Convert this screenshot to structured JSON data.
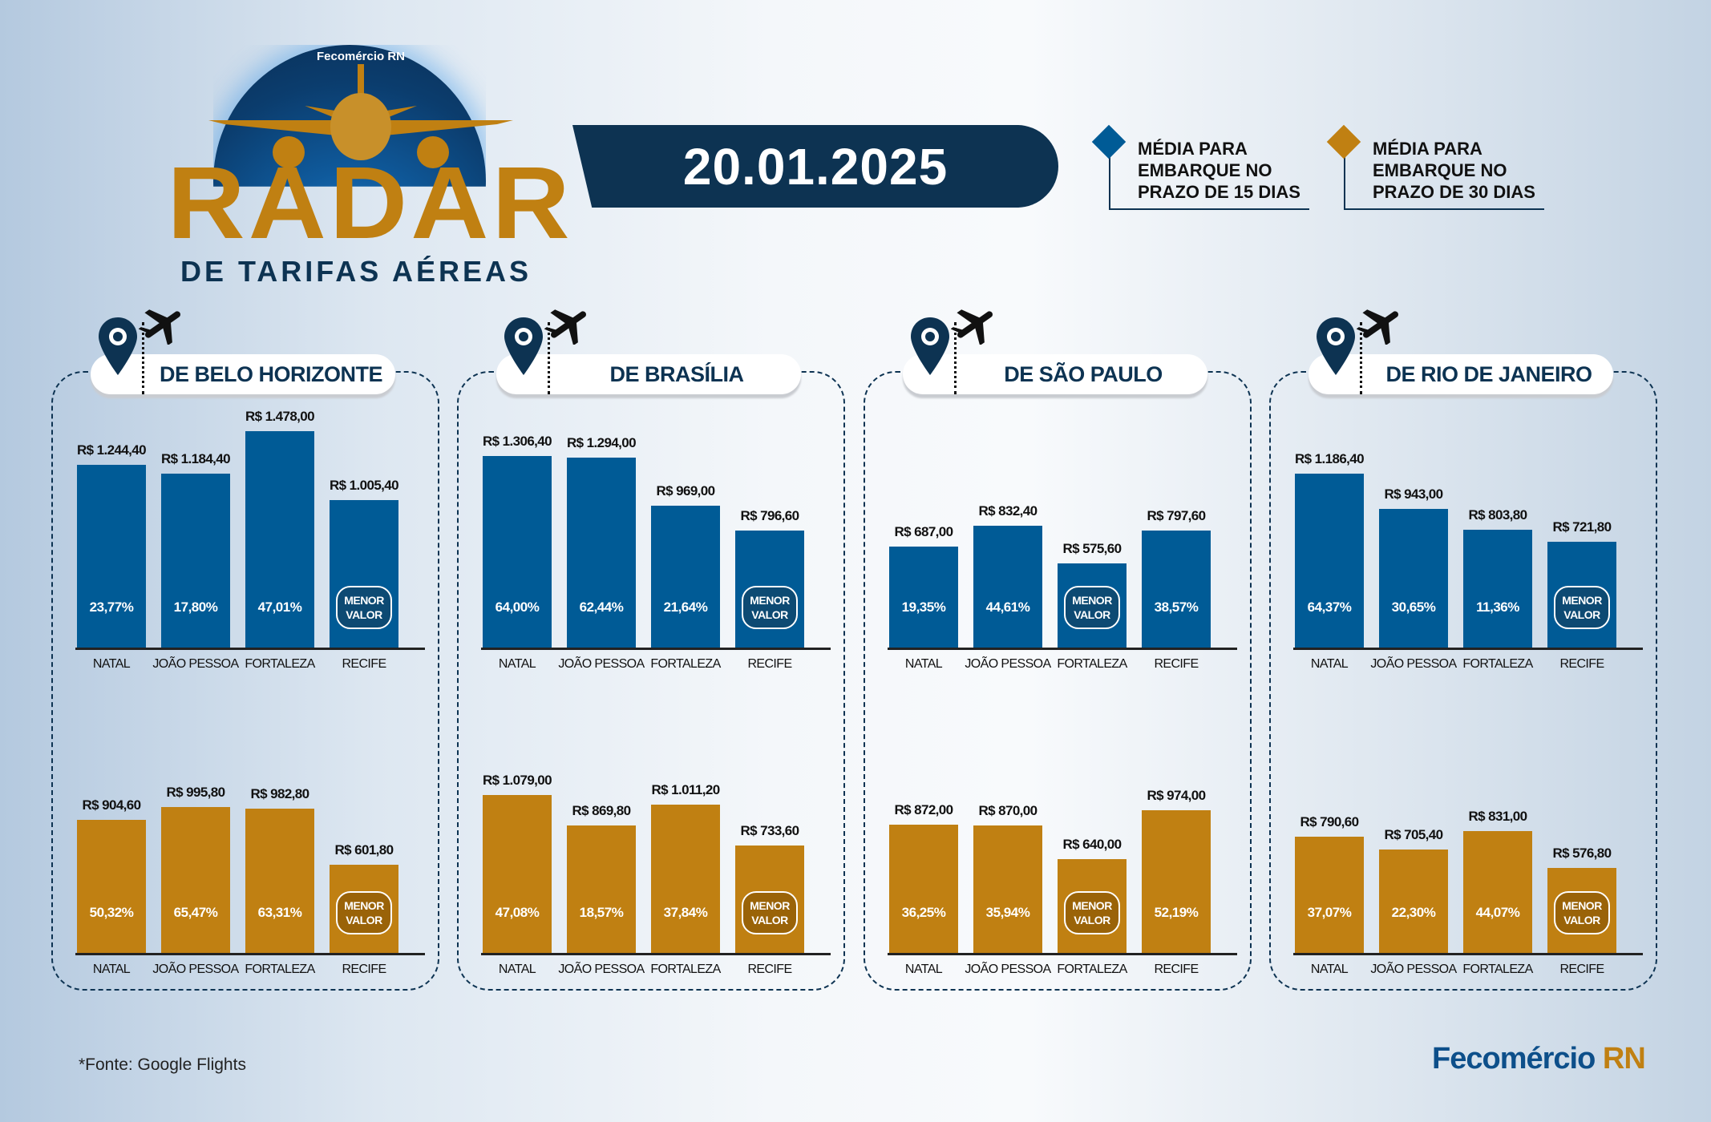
{
  "header": {
    "logo_brand": "Fecomércio RN",
    "logo_title": "RADAR",
    "logo_subtitle": "DE TARIFAS AÉREAS",
    "date": "20.01.2025"
  },
  "legend": [
    {
      "text": "MÉDIA PARA EMBARQUE NO PRAZO DE 15 DIAS",
      "color": "#005b96"
    },
    {
      "text": "MÉDIA PARA EMBARQUE NO PRAZO DE 30 DIAS",
      "color": "#c08012"
    }
  ],
  "badge_text": "MENOR VALOR",
  "colors": {
    "blue": "#005b96",
    "gold": "#c08012",
    "navy": "#0d3352",
    "blue_badge": "#0d4a73",
    "gold_badge": "#9a6308"
  },
  "footer": {
    "source": "*Fonte: Google Flights",
    "brand_main": "Fecomércio",
    "brand_suffix": "RN"
  },
  "chart_data": [
    {
      "type": "bar",
      "title": "DE BELO HORIZONTE",
      "categories": [
        "NATAL",
        "JOÃO PESSOA",
        "FORTALEZA",
        "RECIFE"
      ],
      "series": [
        {
          "name": "15 dias",
          "values": [
            1244.4,
            1184.4,
            1478.0,
            1005.4
          ],
          "labels": [
            "R$ 1.244,40",
            "R$ 1.184,40",
            "R$ 1.478,00",
            "R$ 1.005,40"
          ],
          "pct": [
            "23,77%",
            "17,80%",
            "47,01%",
            null
          ]
        },
        {
          "name": "30 dias",
          "values": [
            904.6,
            995.8,
            982.8,
            601.8
          ],
          "labels": [
            "R$ 904,60",
            "R$ 995,80",
            "R$ 982,80",
            "R$ 601,80"
          ],
          "pct": [
            "50,32%",
            "65,47%",
            "63,31%",
            null
          ]
        }
      ]
    },
    {
      "type": "bar",
      "title": "DE BRASÍLIA",
      "categories": [
        "NATAL",
        "JOÃO PESSOA",
        "FORTALEZA",
        "RECIFE"
      ],
      "series": [
        {
          "name": "15 dias",
          "values": [
            1306.4,
            1294.0,
            969.0,
            796.6
          ],
          "labels": [
            "R$ 1.306,40",
            "R$ 1.294,00",
            "R$ 969,00",
            "R$ 796,60"
          ],
          "pct": [
            "64,00%",
            "62,44%",
            "21,64%",
            null
          ]
        },
        {
          "name": "30 dias",
          "values": [
            1079.0,
            869.8,
            1011.2,
            733.6
          ],
          "labels": [
            "R$ 1.079,00",
            "R$ 869,80",
            "R$ 1.011,20",
            "R$ 733,60"
          ],
          "pct": [
            "47,08%",
            "18,57%",
            "37,84%",
            null
          ]
        }
      ]
    },
    {
      "type": "bar",
      "title": "DE SÃO PAULO",
      "categories": [
        "NATAL",
        "JOÃO PESSOA",
        "FORTALEZA",
        "RECIFE"
      ],
      "series": [
        {
          "name": "15 dias",
          "values": [
            687.0,
            832.4,
            575.6,
            797.6
          ],
          "labels": [
            "R$ 687,00",
            "R$ 832,40",
            "R$ 575,60",
            "R$ 797,60"
          ],
          "pct": [
            "19,35%",
            "44,61%",
            null,
            "38,57%"
          ]
        },
        {
          "name": "30 dias",
          "values": [
            872.0,
            870.0,
            640.0,
            974.0
          ],
          "labels": [
            "R$ 872,00",
            "R$ 870,00",
            "R$ 640,00",
            "R$ 974,00"
          ],
          "pct": [
            "36,25%",
            "35,94%",
            null,
            "52,19%"
          ]
        }
      ]
    },
    {
      "type": "bar",
      "title": "DE RIO DE JANEIRO",
      "categories": [
        "NATAL",
        "JOÃO PESSOA",
        "FORTALEZA",
        "RECIFE"
      ],
      "series": [
        {
          "name": "15 dias",
          "values": [
            1186.4,
            943.0,
            803.8,
            721.8
          ],
          "labels": [
            "R$ 1.186,40",
            "R$ 943,00",
            "R$ 803,80",
            "R$ 721,80"
          ],
          "pct": [
            "64,37%",
            "30,65%",
            "11,36%",
            null
          ]
        },
        {
          "name": "30 dias",
          "values": [
            790.6,
            705.4,
            831.0,
            576.8
          ],
          "labels": [
            "R$ 790,60",
            "R$ 705,40",
            "R$ 831,00",
            "R$ 576,80"
          ],
          "pct": [
            "37,07%",
            "22,30%",
            "44,07%",
            null
          ]
        }
      ]
    }
  ]
}
